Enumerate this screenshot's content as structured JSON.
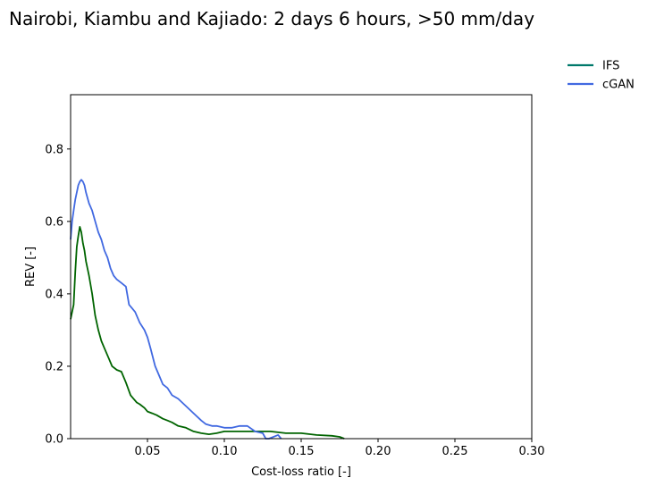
{
  "chart_data": {
    "type": "line",
    "title": "Nairobi, Kiambu and Kajiado: 2 days 6 hours, >50 mm/day",
    "xlabel": "Cost-loss ratio [-]",
    "ylabel": "REV [-]",
    "xlim": [
      0.0,
      0.3
    ],
    "ylim": [
      0.0,
      0.95
    ],
    "xticks": [
      0.05,
      0.1,
      0.15,
      0.2,
      0.25,
      0.3
    ],
    "xtick_labels": [
      "0.05",
      "0.10",
      "0.15",
      "0.20",
      "0.25",
      "0.30"
    ],
    "yticks": [
      0.0,
      0.2,
      0.4,
      0.6,
      0.8
    ],
    "ytick_labels": [
      "0.0",
      "0.2",
      "0.4",
      "0.6",
      "0.8"
    ],
    "grid": false,
    "legend": {
      "placement": "outside-top-right",
      "entries": [
        {
          "label": "IFS",
          "color": "#00796b"
        },
        {
          "label": "cGAN",
          "color": "#4169e1"
        }
      ]
    },
    "series": [
      {
        "name": "IFS",
        "color": "#006400",
        "x": [
          0.0,
          0.002,
          0.003,
          0.004,
          0.005,
          0.006,
          0.007,
          0.008,
          0.009,
          0.01,
          0.011,
          0.012,
          0.014,
          0.016,
          0.018,
          0.02,
          0.022,
          0.025,
          0.027,
          0.03,
          0.033,
          0.036,
          0.039,
          0.041,
          0.043,
          0.045,
          0.048,
          0.05,
          0.053,
          0.056,
          0.06,
          0.063,
          0.066,
          0.07,
          0.075,
          0.08,
          0.085,
          0.09,
          0.095,
          0.1,
          0.11,
          0.12,
          0.13,
          0.14,
          0.15,
          0.16,
          0.17,
          0.175,
          0.178
        ],
        "y": [
          0.33,
          0.37,
          0.46,
          0.53,
          0.56,
          0.585,
          0.57,
          0.54,
          0.52,
          0.49,
          0.47,
          0.45,
          0.4,
          0.34,
          0.3,
          0.27,
          0.25,
          0.22,
          0.2,
          0.19,
          0.185,
          0.155,
          0.12,
          0.11,
          0.1,
          0.095,
          0.085,
          0.075,
          0.07,
          0.065,
          0.055,
          0.05,
          0.045,
          0.035,
          0.03,
          0.02,
          0.015,
          0.012,
          0.015,
          0.02,
          0.02,
          0.02,
          0.02,
          0.015,
          0.015,
          0.01,
          0.008,
          0.005,
          0.0
        ]
      },
      {
        "name": "cGAN",
        "color": "#4169e1",
        "x": [
          0.0,
          0.001,
          0.002,
          0.003,
          0.004,
          0.005,
          0.006,
          0.007,
          0.008,
          0.009,
          0.01,
          0.012,
          0.014,
          0.016,
          0.018,
          0.02,
          0.022,
          0.024,
          0.026,
          0.028,
          0.03,
          0.033,
          0.036,
          0.038,
          0.04,
          0.042,
          0.045,
          0.048,
          0.05,
          0.052,
          0.055,
          0.058,
          0.06,
          0.063,
          0.066,
          0.07,
          0.075,
          0.08,
          0.085,
          0.088,
          0.092,
          0.095,
          0.1,
          0.105,
          0.11,
          0.115,
          0.12,
          0.125,
          0.127,
          0.129,
          0.135,
          0.137
        ],
        "y": [
          0.55,
          0.6,
          0.63,
          0.66,
          0.68,
          0.7,
          0.71,
          0.715,
          0.71,
          0.7,
          0.68,
          0.65,
          0.63,
          0.6,
          0.57,
          0.55,
          0.52,
          0.5,
          0.47,
          0.45,
          0.44,
          0.43,
          0.42,
          0.37,
          0.36,
          0.35,
          0.32,
          0.3,
          0.28,
          0.25,
          0.2,
          0.17,
          0.15,
          0.14,
          0.12,
          0.11,
          0.09,
          0.07,
          0.05,
          0.04,
          0.035,
          0.035,
          0.03,
          0.03,
          0.035,
          0.035,
          0.02,
          0.015,
          0.0,
          0.0,
          0.01,
          0.0
        ]
      }
    ]
  }
}
